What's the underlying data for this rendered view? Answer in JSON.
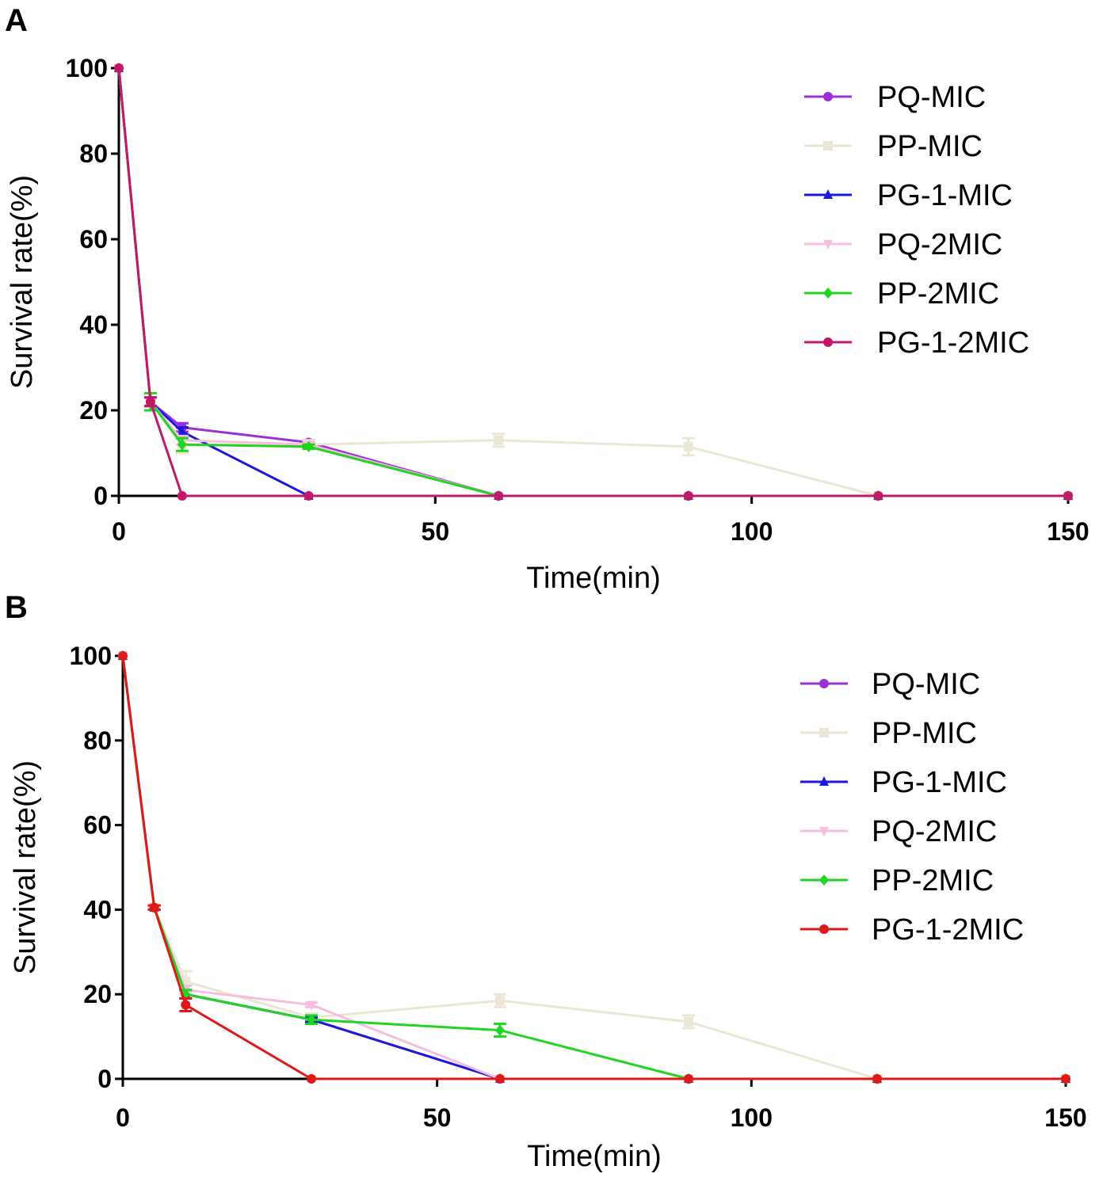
{
  "chart_data": [
    {
      "panel": "A",
      "type": "line",
      "xlabel": "Time(min)",
      "ylabel": "Survival rate(%)",
      "xlim": [
        0,
        150
      ],
      "ylim": [
        0,
        100
      ],
      "xticks": [
        0,
        50,
        100,
        150
      ],
      "yticks": [
        0,
        20,
        40,
        60,
        80,
        100
      ],
      "legend_position": "top-right",
      "series": [
        {
          "name": "PQ-MIC",
          "color": "#9b30d9",
          "marker": "circle",
          "x": [
            0,
            5,
            10,
            30,
            60,
            90,
            120,
            150
          ],
          "y": [
            100,
            22,
            16,
            12.5,
            0,
            0,
            0,
            0
          ],
          "err": [
            0,
            1,
            1,
            0.5,
            0,
            0,
            0,
            0
          ]
        },
        {
          "name": "PP-MIC",
          "color": "#ebe6d3",
          "marker": "square",
          "x": [
            0,
            5,
            10,
            30,
            60,
            90,
            120,
            150
          ],
          "y": [
            100,
            22,
            12,
            12,
            13,
            11.5,
            0,
            0
          ],
          "err": [
            0,
            1,
            2,
            1,
            1.5,
            2,
            0,
            0
          ]
        },
        {
          "name": "PG-1-MIC",
          "color": "#1a1adc",
          "marker": "triangle-up",
          "x": [
            0,
            5,
            10,
            30,
            60,
            90,
            120,
            150
          ],
          "y": [
            100,
            22,
            15,
            0,
            0,
            0,
            0,
            0
          ],
          "err": [
            0,
            1,
            1,
            0,
            0,
            0,
            0,
            0
          ]
        },
        {
          "name": "PQ-2MIC",
          "color": "#f7bde0",
          "marker": "triangle-down",
          "x": [
            0,
            5,
            10,
            30,
            60,
            90,
            120,
            150
          ],
          "y": [
            100,
            22,
            13,
            12,
            0,
            0,
            0,
            0
          ],
          "err": [
            0,
            1,
            1,
            0.5,
            0,
            0,
            0,
            0
          ]
        },
        {
          "name": "PP-2MIC",
          "color": "#22d422",
          "marker": "diamond",
          "x": [
            0,
            5,
            10,
            30,
            60,
            90,
            120,
            150
          ],
          "y": [
            100,
            22,
            12,
            11.5,
            0,
            0,
            0,
            0
          ],
          "err": [
            0,
            2,
            1.5,
            0.5,
            0,
            0,
            0,
            0
          ]
        },
        {
          "name": "PG-1-2MIC",
          "color": "#c0186a",
          "marker": "circle",
          "x": [
            0,
            5,
            10,
            30,
            60,
            90,
            120,
            150
          ],
          "y": [
            100,
            22,
            0,
            0,
            0,
            0,
            0,
            0
          ],
          "err": [
            0,
            1,
            0,
            0,
            0,
            0,
            0,
            0
          ]
        }
      ]
    },
    {
      "panel": "B",
      "type": "line",
      "xlabel": "Time(min)",
      "ylabel": "Survival rate(%)",
      "xlim": [
        0,
        150
      ],
      "ylim": [
        0,
        100
      ],
      "xticks": [
        0,
        50,
        100,
        150
      ],
      "yticks": [
        0,
        20,
        40,
        60,
        80,
        100
      ],
      "legend_position": "top-right",
      "series": [
        {
          "name": "PQ-MIC",
          "color": "#9b30d9",
          "marker": "circle",
          "x": [
            0,
            5,
            10,
            30,
            60,
            90,
            120,
            150
          ],
          "y": [
            100,
            40.5,
            20,
            14,
            0,
            0,
            0,
            0
          ],
          "err": [
            0,
            0.5,
            1,
            0.5,
            0,
            0,
            0,
            0
          ]
        },
        {
          "name": "PP-MIC",
          "color": "#ebe6d3",
          "marker": "square",
          "x": [
            0,
            5,
            10,
            30,
            60,
            90,
            120,
            150
          ],
          "y": [
            100,
            40.5,
            23,
            14.5,
            18.5,
            13.5,
            0,
            0
          ],
          "err": [
            0,
            0.5,
            2.5,
            1,
            1.5,
            1.5,
            0,
            0
          ]
        },
        {
          "name": "PG-1-MIC",
          "color": "#1a1adc",
          "marker": "triangle-up",
          "x": [
            0,
            5,
            10,
            30,
            60,
            90,
            120,
            150
          ],
          "y": [
            100,
            40.5,
            20,
            14,
            0,
            0,
            0,
            0
          ],
          "err": [
            0,
            0.5,
            1,
            0.5,
            0,
            0,
            0,
            0
          ]
        },
        {
          "name": "PQ-2MIC",
          "color": "#f7bde0",
          "marker": "triangle-down",
          "x": [
            0,
            5,
            10,
            30,
            60,
            90,
            120,
            150
          ],
          "y": [
            100,
            40.5,
            21,
            17.5,
            0,
            0,
            0,
            0
          ],
          "err": [
            0,
            0.5,
            1,
            0.5,
            0,
            0,
            0,
            0
          ]
        },
        {
          "name": "PP-2MIC",
          "color": "#22d422",
          "marker": "diamond",
          "x": [
            0,
            5,
            10,
            30,
            60,
            90,
            120,
            150
          ],
          "y": [
            100,
            40.5,
            20,
            14,
            11.5,
            0,
            0,
            0
          ],
          "err": [
            0,
            0.5,
            1,
            1,
            1.5,
            0,
            0,
            0
          ]
        },
        {
          "name": "PG-1-2MIC",
          "color": "#e01818",
          "marker": "circle",
          "x": [
            0,
            5,
            10,
            30,
            60,
            90,
            120,
            150
          ],
          "y": [
            100,
            40.5,
            17.5,
            0,
            0,
            0,
            0,
            0
          ],
          "err": [
            0,
            0.5,
            1.5,
            0,
            0,
            0,
            0,
            0
          ]
        }
      ]
    }
  ]
}
